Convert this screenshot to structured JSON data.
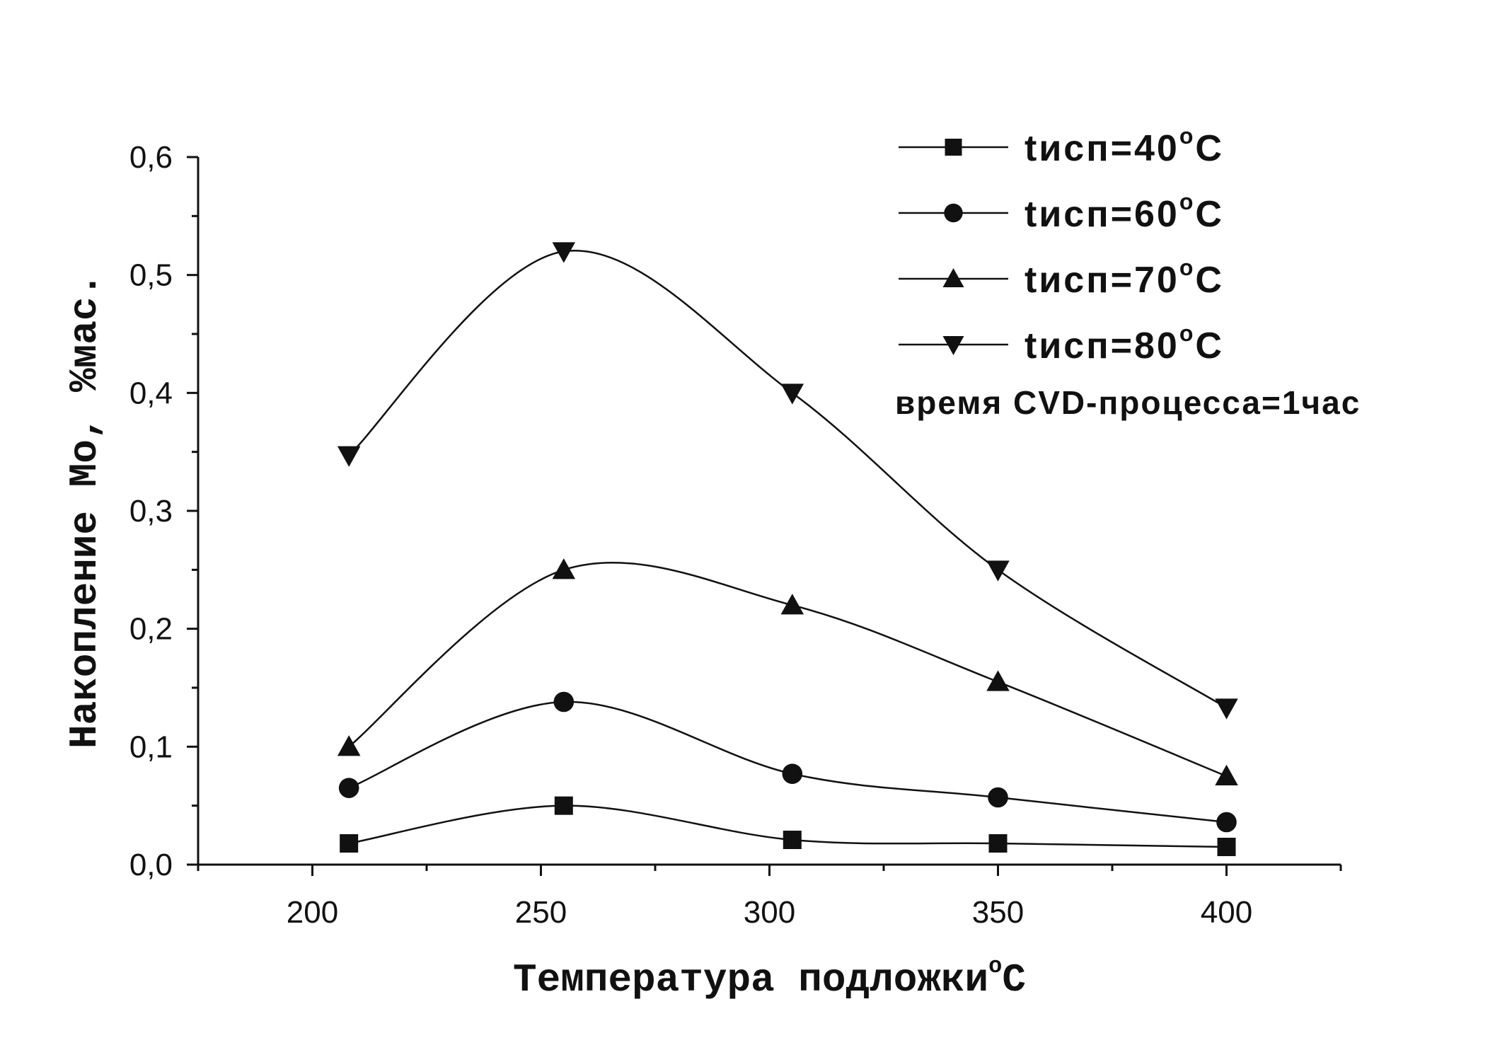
{
  "chart_data": {
    "type": "line",
    "title": "",
    "xlabel": "Температура подложки",
    "xlabel_unit": "C",
    "xlabel_sup": "o",
    "ylabel": "Накопление Mo, %мас.",
    "xlim": [
      175,
      425
    ],
    "ylim": [
      0,
      0.6
    ],
    "x_ticks": [
      200,
      250,
      300,
      350,
      400
    ],
    "x_tick_labels": [
      "200",
      "250",
      "300",
      "350",
      "400"
    ],
    "y_ticks": [
      0,
      0.1,
      0.2,
      0.3,
      0.4,
      0.5,
      0.6
    ],
    "y_tick_labels": [
      "0,0",
      "0,1",
      "0,2",
      "0,3",
      "0,4",
      "0,5",
      "0,6"
    ],
    "grid": false,
    "legend_position": "top-right",
    "x": [
      208,
      255,
      305,
      350,
      400
    ],
    "series": [
      {
        "name": "tисп=40",
        "name_unit": "C",
        "name_sup": "o",
        "marker": "square",
        "values": [
          0.018,
          0.05,
          0.021,
          0.018,
          0.015
        ]
      },
      {
        "name": "tисп=60",
        "name_unit": "C",
        "name_sup": "o",
        "marker": "circle",
        "values": [
          0.065,
          0.138,
          0.077,
          0.057,
          0.036
        ]
      },
      {
        "name": "tисп=70",
        "name_unit": "C",
        "name_sup": "o",
        "marker": "triangle-up",
        "values": [
          0.1,
          0.25,
          0.22,
          0.155,
          0.075
        ]
      },
      {
        "name": "tисп=80",
        "name_unit": "C",
        "name_sup": "o",
        "marker": "triangle-down",
        "values": [
          0.347,
          0.52,
          0.4,
          0.25,
          0.133
        ]
      }
    ],
    "annotation": "время CVD-процесса=1час",
    "colors": {
      "line": "#111111",
      "marker": "#111111",
      "background": "#ffffff"
    }
  }
}
